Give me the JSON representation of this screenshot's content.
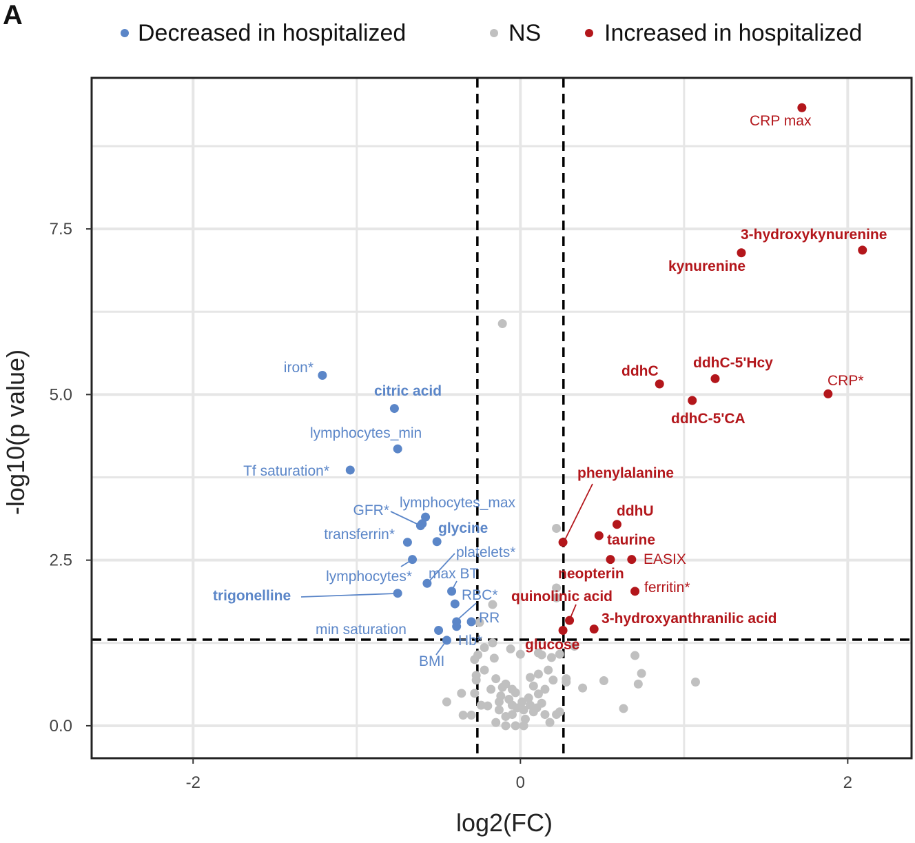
{
  "panel_label": "A",
  "chart_data": {
    "type": "scatter",
    "xlabel": "log2(FC)",
    "ylabel": "-log10(p value)",
    "xlim": [
      -2.62,
      2.39
    ],
    "ylim": [
      -0.49,
      9.78
    ],
    "xticks": [
      {
        "v": -2,
        "label": "-2"
      },
      {
        "v": 0,
        "label": "0"
      },
      {
        "v": 2,
        "label": "2"
      }
    ],
    "yticks": [
      {
        "v": 0,
        "label": "0.0"
      },
      {
        "v": 2.5,
        "label": "2.5"
      },
      {
        "v": 5,
        "label": "5.0"
      },
      {
        "v": 7.5,
        "label": "7.5"
      }
    ],
    "grid": true,
    "thresholds": {
      "fc_left": -0.263,
      "fc_right": 0.263,
      "p_line": 1.3
    },
    "legend_position": "top",
    "series": [
      {
        "name": "Decreased in hospitalized",
        "color": "#5b86c8",
        "points": [
          {
            "x": -1.21,
            "y": 5.29,
            "label": "iron*",
            "bold": false
          },
          {
            "x": -0.77,
            "y": 4.79,
            "label": "citric acid",
            "bold": true
          },
          {
            "x": -0.75,
            "y": 4.18,
            "label": "lymphocytes_min",
            "bold": false
          },
          {
            "x": -1.04,
            "y": 3.86,
            "label": "Tf saturation*",
            "bold": false
          },
          {
            "x": -0.58,
            "y": 3.15,
            "label": "lymphocytes_max",
            "bold": false
          },
          {
            "x": -0.61,
            "y": 3.02,
            "label": "GFR*",
            "bold": false
          },
          {
            "x": -0.6,
            "y": 3.05,
            "label": "",
            "bold": false
          },
          {
            "x": -0.51,
            "y": 2.78,
            "label": "glycine",
            "bold": true
          },
          {
            "x": -0.69,
            "y": 2.77,
            "label": "transferrin*",
            "bold": false
          },
          {
            "x": -0.66,
            "y": 2.51,
            "label": "lymphocytes*",
            "bold": false
          },
          {
            "x": -0.57,
            "y": 2.15,
            "label": "platelets*",
            "bold": false
          },
          {
            "x": -0.42,
            "y": 2.03,
            "label": "max BT",
            "bold": false
          },
          {
            "x": -0.75,
            "y": 2.0,
            "label": "trigonelline",
            "bold": true
          },
          {
            "x": -0.4,
            "y": 1.84,
            "label": "RBC*",
            "bold": false
          },
          {
            "x": -0.39,
            "y": 1.57,
            "label": "RR",
            "bold": false
          },
          {
            "x": -0.39,
            "y": 1.5,
            "label": "",
            "bold": false
          },
          {
            "x": -0.3,
            "y": 1.57,
            "label": "Hb*",
            "bold": false
          },
          {
            "x": -0.5,
            "y": 1.44,
            "label": "min saturation",
            "bold": false
          },
          {
            "x": -0.45,
            "y": 1.29,
            "label": "BMI",
            "bold": false
          }
        ]
      },
      {
        "name": "NS",
        "color": "#c0c0c0",
        "points": [
          {
            "x": -0.11,
            "y": 6.07
          },
          {
            "x": 0.22,
            "y": 2.98
          },
          {
            "x": 0.22,
            "y": 2.08
          },
          {
            "x": 0.22,
            "y": 1.93
          },
          {
            "x": -0.17,
            "y": 1.83
          },
          {
            "x": -0.25,
            "y": 1.56
          },
          {
            "x": -0.17,
            "y": 1.25
          },
          {
            "x": -0.22,
            "y": 1.18
          },
          {
            "x": -0.26,
            "y": 1.07
          },
          {
            "x": -0.28,
            "y": 1.0
          },
          {
            "x": -0.16,
            "y": 1.02
          },
          {
            "x": -0.06,
            "y": 1.16
          },
          {
            "x": 0.0,
            "y": 1.08
          },
          {
            "x": 0.11,
            "y": 1.1
          },
          {
            "x": 0.13,
            "y": 1.07
          },
          {
            "x": 0.19,
            "y": 1.03
          },
          {
            "x": 0.24,
            "y": 1.08
          },
          {
            "x": 0.33,
            "y": 1.2
          },
          {
            "x": 0.7,
            "y": 1.06
          },
          {
            "x": -0.22,
            "y": 0.84
          },
          {
            "x": -0.27,
            "y": 0.76
          },
          {
            "x": -0.27,
            "y": 0.69
          },
          {
            "x": -0.15,
            "y": 0.71
          },
          {
            "x": -0.09,
            "y": 0.63
          },
          {
            "x": -0.05,
            "y": 0.55
          },
          {
            "x": -0.18,
            "y": 0.55
          },
          {
            "x": -0.11,
            "y": 0.58
          },
          {
            "x": 0.06,
            "y": 0.73
          },
          {
            "x": 0.11,
            "y": 0.78
          },
          {
            "x": 0.17,
            "y": 0.84
          },
          {
            "x": 0.2,
            "y": 0.69
          },
          {
            "x": 0.28,
            "y": 0.71
          },
          {
            "x": 0.28,
            "y": 0.66
          },
          {
            "x": 0.38,
            "y": 0.57
          },
          {
            "x": 0.51,
            "y": 0.68
          },
          {
            "x": 0.74,
            "y": 0.79
          },
          {
            "x": 0.72,
            "y": 0.63
          },
          {
            "x": -0.36,
            "y": 0.49
          },
          {
            "x": -0.28,
            "y": 0.49
          },
          {
            "x": -0.45,
            "y": 0.36
          },
          {
            "x": -0.24,
            "y": 0.31
          },
          {
            "x": -0.13,
            "y": 0.36
          },
          {
            "x": -0.13,
            "y": 0.24
          },
          {
            "x": -0.05,
            "y": 0.31
          },
          {
            "x": 0.01,
            "y": 0.36
          },
          {
            "x": 0.05,
            "y": 0.42
          },
          {
            "x": 0.11,
            "y": 0.48
          },
          {
            "x": 0.15,
            "y": 0.55
          },
          {
            "x": 0.13,
            "y": 0.34
          },
          {
            "x": 0.02,
            "y": 0.24
          },
          {
            "x": 0.08,
            "y": 0.21
          },
          {
            "x": 0.15,
            "y": 0.17
          },
          {
            "x": -0.05,
            "y": 0.17
          },
          {
            "x": -0.09,
            "y": 0.14
          },
          {
            "x": -0.35,
            "y": 0.16
          },
          {
            "x": -0.3,
            "y": 0.16
          },
          {
            "x": -0.15,
            "y": 0.05
          },
          {
            "x": -0.09,
            "y": 0.0
          },
          {
            "x": -0.03,
            "y": 0.0
          },
          {
            "x": 0.02,
            "y": 0.0
          },
          {
            "x": 0.18,
            "y": 0.05
          },
          {
            "x": 0.22,
            "y": 0.17
          },
          {
            "x": 0.24,
            "y": 0.21
          },
          {
            "x": 0.63,
            "y": 0.26
          },
          {
            "x": -0.02,
            "y": 0.27
          },
          {
            "x": 0.06,
            "y": 0.31
          },
          {
            "x": 1.07,
            "y": 0.66
          },
          {
            "x": -0.2,
            "y": 0.3
          },
          {
            "x": -0.07,
            "y": 0.4
          },
          {
            "x": 0.03,
            "y": 0.1
          },
          {
            "x": 0.1,
            "y": 0.27
          },
          {
            "x": -0.12,
            "y": 0.45
          },
          {
            "x": -0.03,
            "y": 0.5
          },
          {
            "x": 0.08,
            "y": 0.6
          }
        ]
      },
      {
        "name": "Increased in hospitalized",
        "color": "#b3161b",
        "points": [
          {
            "x": 1.72,
            "y": 9.33,
            "label": "CRP max",
            "bold": false
          },
          {
            "x": 2.09,
            "y": 7.18,
            "label": "3-hydroxykynurenine",
            "bold": true
          },
          {
            "x": 1.35,
            "y": 7.14,
            "label": "kynurenine",
            "bold": true
          },
          {
            "x": 0.85,
            "y": 5.16,
            "label": "ddhC",
            "bold": true
          },
          {
            "x": 1.19,
            "y": 5.24,
            "label": "ddhC-5'Hcy",
            "bold": true
          },
          {
            "x": 1.05,
            "y": 4.91,
            "label": "ddhC-5'CA",
            "bold": true
          },
          {
            "x": 1.88,
            "y": 5.01,
            "label": "CRP*",
            "bold": false
          },
          {
            "x": 0.26,
            "y": 2.77,
            "label": "phenylalanine",
            "bold": true
          },
          {
            "x": 0.59,
            "y": 3.04,
            "label": "ddhU",
            "bold": true
          },
          {
            "x": 0.48,
            "y": 2.87,
            "label": "taurine",
            "bold": true
          },
          {
            "x": 0.55,
            "y": 2.51,
            "label": "neopterin",
            "bold": true
          },
          {
            "x": 0.68,
            "y": 2.51,
            "label": "EASIX",
            "bold": false
          },
          {
            "x": 0.7,
            "y": 2.03,
            "label": "ferritin*",
            "bold": false
          },
          {
            "x": 0.3,
            "y": 1.59,
            "label": "quinolinic acid",
            "bold": true
          },
          {
            "x": 0.45,
            "y": 1.46,
            "label": "3-hydroxyanthranilic acid",
            "bold": true
          },
          {
            "x": 0.26,
            "y": 1.44,
            "label": "glucose",
            "bold": true
          }
        ]
      }
    ]
  }
}
